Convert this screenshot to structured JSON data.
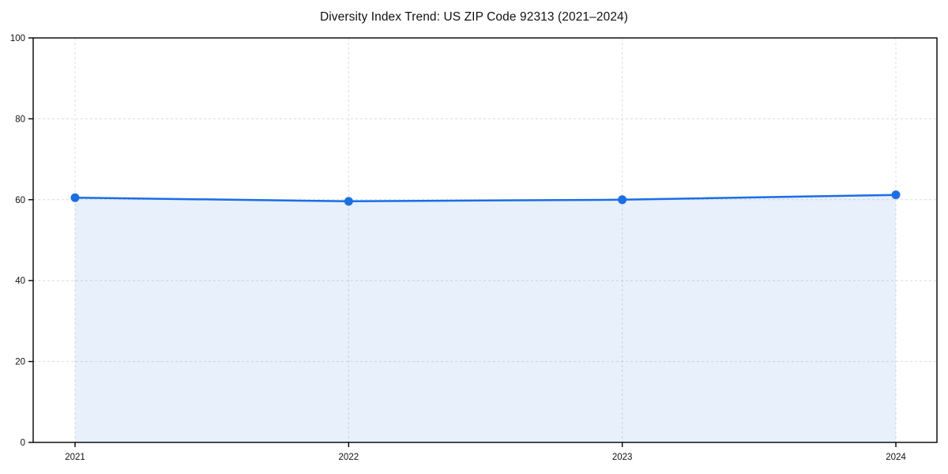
{
  "chart_data": {
    "type": "area",
    "title": "Diversity Index Trend: US ZIP Code 92313 (2021–2024)",
    "x": [
      2021,
      2022,
      2023,
      2024
    ],
    "series": [
      {
        "name": "Diversity Index",
        "values": [
          60.5,
          59.6,
          60.0,
          61.2
        ]
      }
    ],
    "xlabel": "",
    "ylabel": "",
    "ylim": [
      0,
      100
    ],
    "yticks": [
      0,
      20,
      40,
      60,
      80,
      100
    ],
    "xtick_labels": [
      "2021",
      "2022",
      "2023",
      "2024"
    ],
    "grid": true,
    "grid_style": "dashed",
    "legend": "none",
    "colors": {
      "line": "#1a6ee6",
      "marker": "#1a6ee6",
      "fill": "rgba(26, 110, 230, 0.10)",
      "grid": "#dcdcdc",
      "axis": "#000000",
      "tick_text": "#111111",
      "background": "#ffffff"
    }
  }
}
